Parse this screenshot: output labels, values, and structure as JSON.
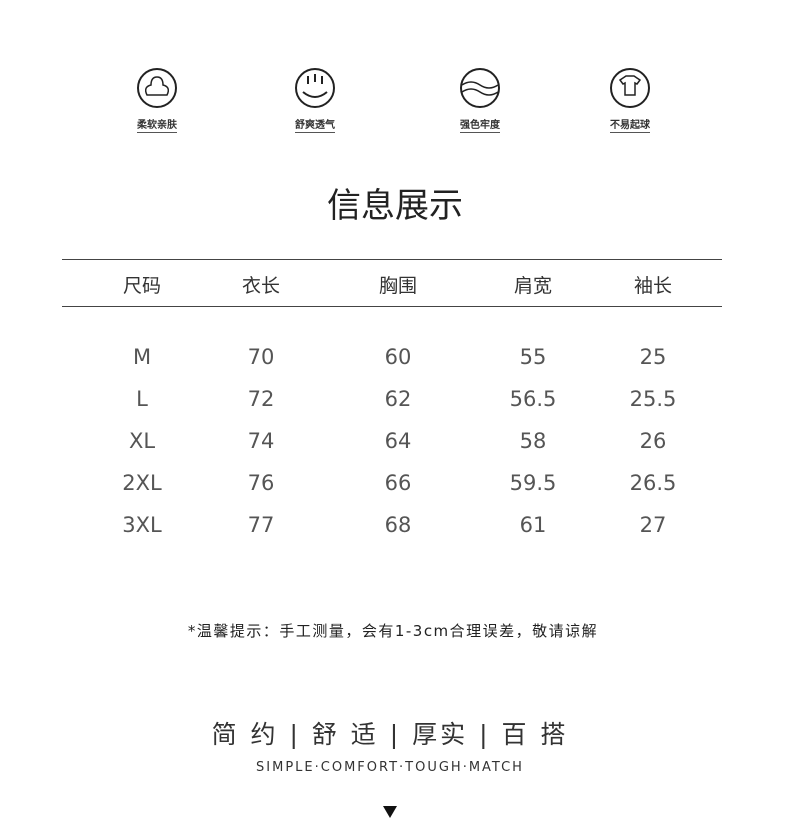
{
  "features": [
    {
      "label": "柔软亲肤"
    },
    {
      "label": "舒爽透气"
    },
    {
      "label": "强色牢度"
    },
    {
      "label": "不易起球"
    }
  ],
  "title": "信息展示",
  "table": {
    "header": [
      "尺码",
      "衣长",
      "胸围",
      "肩宽",
      "袖长"
    ],
    "rows": [
      [
        "M",
        "70",
        "60",
        "55",
        "25"
      ],
      [
        "L",
        "72",
        "62",
        "56.5",
        "25.5"
      ],
      [
        "XL",
        "74",
        "64",
        "58",
        "26"
      ],
      [
        "2XL",
        "76",
        "66",
        "59.5",
        "26.5"
      ],
      [
        "3XL",
        "77",
        "68",
        "61",
        "27"
      ]
    ]
  },
  "note": "*温馨提示：手工测量，会有1-3cm合理误差，敬请谅解",
  "slogan": "简 约 | 舒 适 | 厚实 | 百 搭",
  "slogan_en": "SIMPLE·COMFORT·TOUGH·MATCH"
}
